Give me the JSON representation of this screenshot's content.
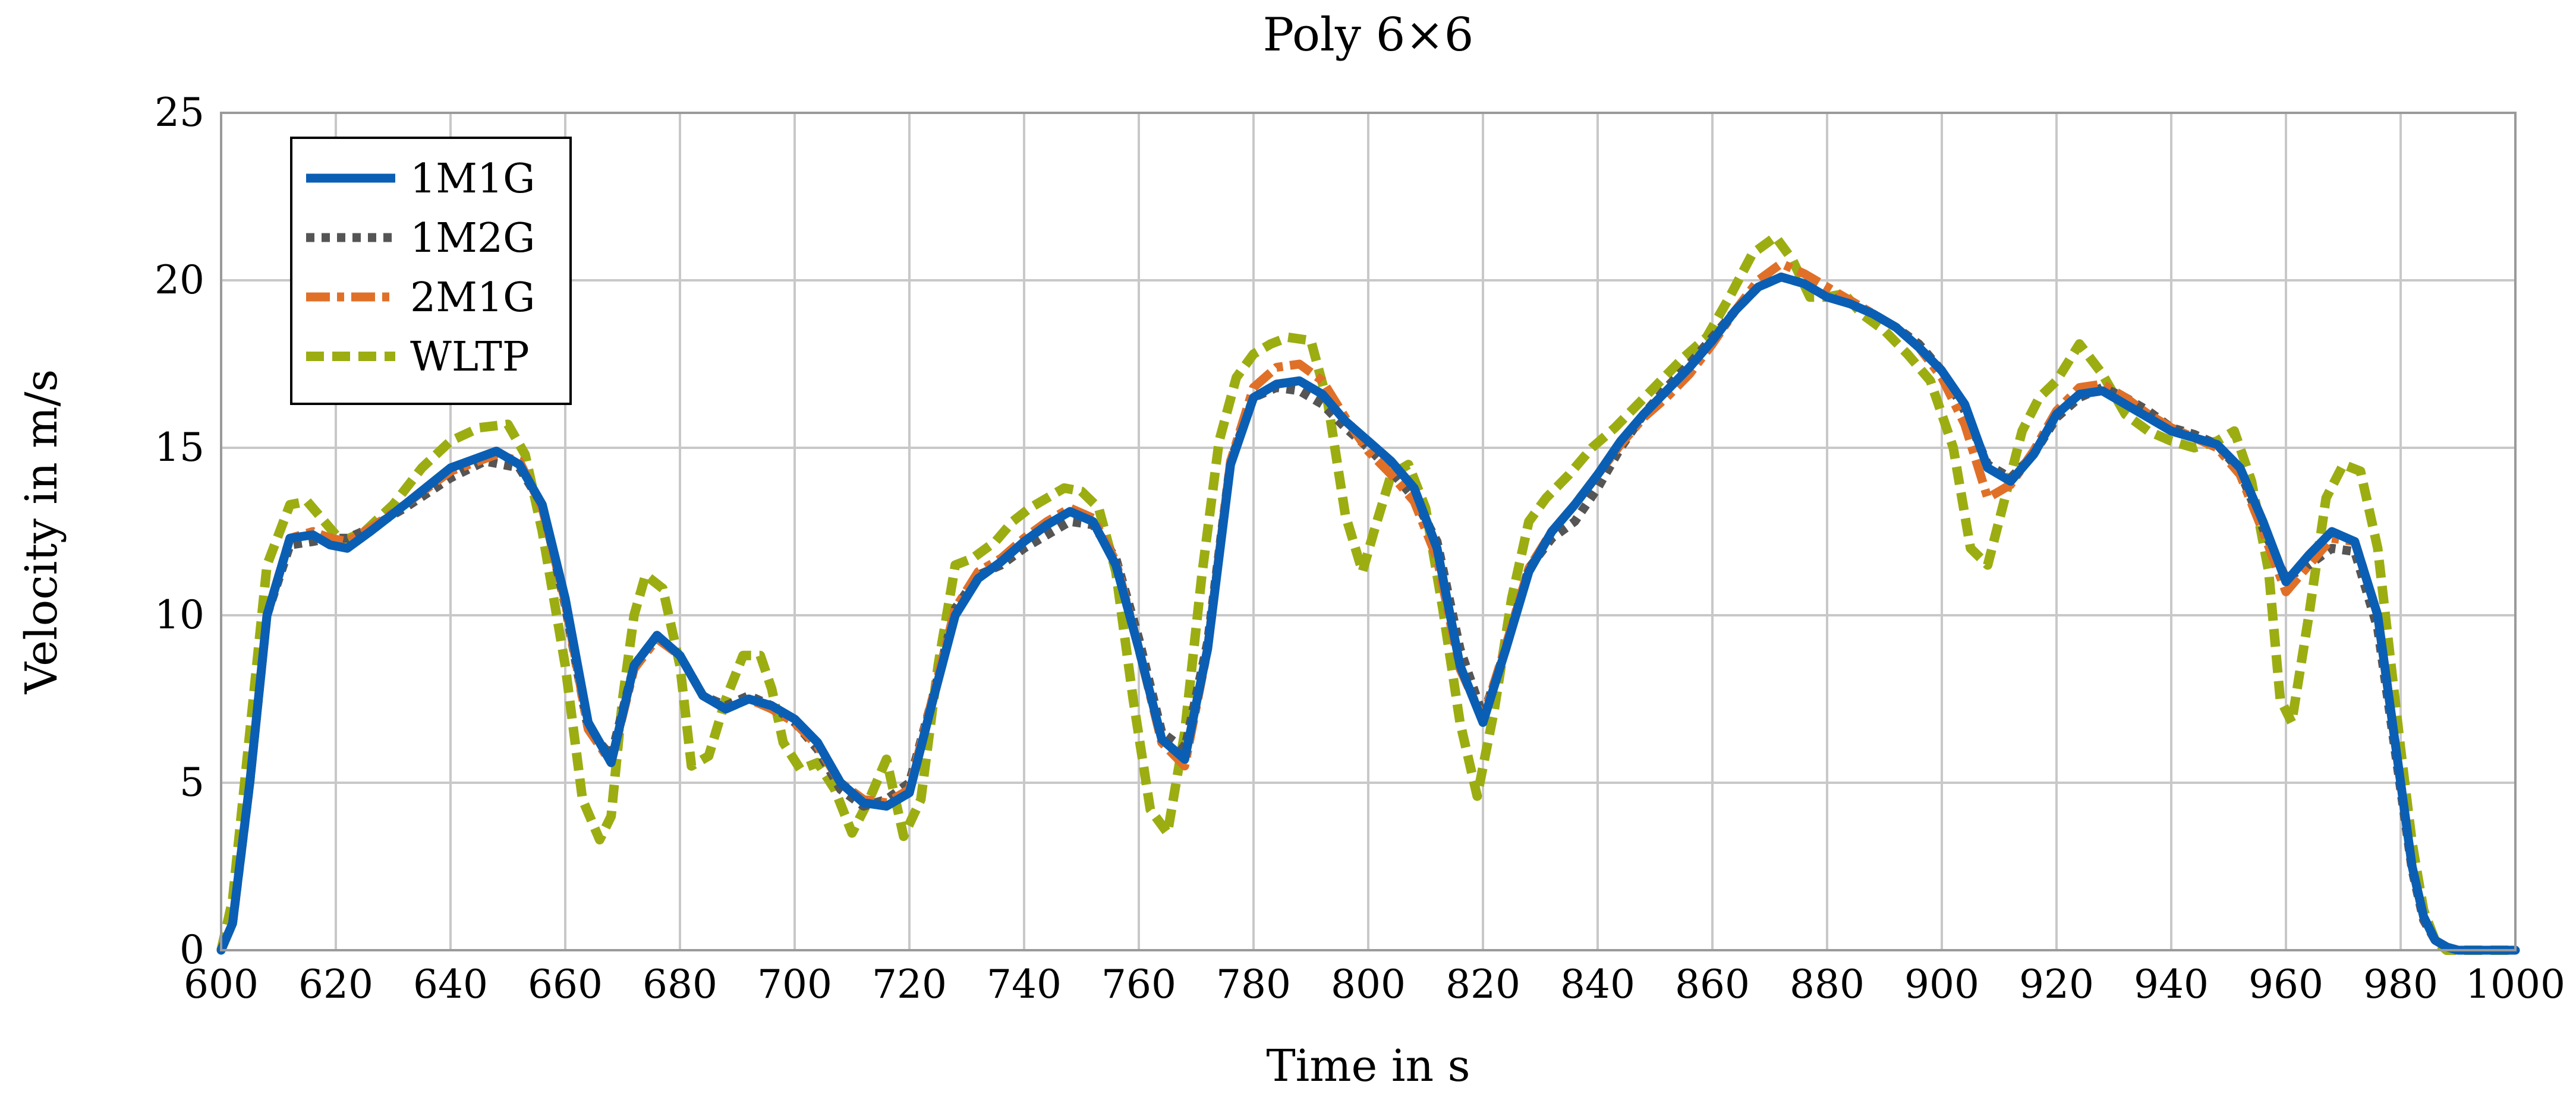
{
  "chart_data": {
    "type": "line",
    "title": "Poly 6×6",
    "xlabel": "Time in s",
    "ylabel": "Velocity in m/s",
    "xlim": [
      600,
      1000
    ],
    "ylim": [
      0,
      25
    ],
    "xticks": [
      600,
      620,
      640,
      660,
      680,
      700,
      720,
      740,
      760,
      780,
      800,
      820,
      840,
      860,
      880,
      900,
      920,
      940,
      960,
      980,
      1000
    ],
    "yticks": [
      0,
      5,
      10,
      15,
      20,
      25
    ],
    "grid": true,
    "legend_position": "top-left",
    "series": [
      {
        "name": "1M1G",
        "color": "#0a5fb4",
        "style": "solid",
        "x": [
          600,
          602,
          605,
          608,
          612,
          616,
          619,
          622,
          626,
          632,
          640,
          648,
          652,
          656,
          660,
          664,
          668,
          672,
          676,
          680,
          684,
          688,
          692,
          696,
          700,
          704,
          708,
          712,
          716,
          720,
          724,
          728,
          732,
          736,
          740,
          744,
          748,
          752,
          756,
          760,
          764,
          768,
          772,
          776,
          780,
          784,
          788,
          792,
          796,
          800,
          804,
          808,
          812,
          816,
          820,
          824,
          828,
          832,
          836,
          840,
          844,
          848,
          852,
          856,
          860,
          864,
          868,
          872,
          876,
          880,
          884,
          888,
          892,
          896,
          900,
          904,
          908,
          912,
          916,
          920,
          924,
          928,
          932,
          936,
          940,
          944,
          948,
          952,
          956,
          960,
          964,
          968,
          972,
          976,
          978,
          980,
          982,
          984,
          986,
          988,
          990,
          995,
          1000
        ],
        "y": [
          0,
          0.8,
          5,
          10,
          12.3,
          12.4,
          12.1,
          12,
          12.5,
          13.3,
          14.4,
          14.9,
          14.5,
          13.3,
          10.5,
          6.8,
          5.6,
          8.5,
          9.4,
          8.8,
          7.6,
          7.2,
          7.5,
          7.3,
          6.9,
          6.2,
          5,
          4.4,
          4.3,
          4.7,
          7.4,
          10,
          11.1,
          11.6,
          12.2,
          12.7,
          13.1,
          12.8,
          11.5,
          9,
          6.3,
          5.7,
          9,
          14.5,
          16.5,
          16.9,
          17,
          16.6,
          15.8,
          15.2,
          14.6,
          13.8,
          12,
          8.5,
          6.8,
          9,
          11.3,
          12.5,
          13.3,
          14.2,
          15.2,
          16,
          16.7,
          17.4,
          18.2,
          19.1,
          19.8,
          20.1,
          19.9,
          19.5,
          19.3,
          19,
          18.6,
          18,
          17.3,
          16.3,
          14.4,
          14,
          14.8,
          16,
          16.6,
          16.7,
          16.3,
          15.9,
          15.5,
          15.3,
          15.1,
          14.4,
          12.8,
          11,
          11.8,
          12.5,
          12.2,
          10,
          7.5,
          5,
          2.5,
          1,
          0.3,
          0.1,
          0,
          0,
          0
        ]
      },
      {
        "name": "1M2G",
        "color": "#555555",
        "style": "dotted",
        "x": [
          600,
          602,
          605,
          608,
          612,
          616,
          619,
          622,
          626,
          632,
          640,
          646,
          652,
          656,
          660,
          664,
          668,
          672,
          676,
          680,
          684,
          688,
          692,
          696,
          700,
          704,
          708,
          712,
          716,
          720,
          724,
          728,
          732,
          736,
          740,
          744,
          748,
          752,
          756,
          760,
          764,
          768,
          772,
          776,
          780,
          784,
          788,
          792,
          796,
          800,
          804,
          808,
          812,
          816,
          820,
          824,
          828,
          832,
          836,
          840,
          844,
          848,
          852,
          856,
          860,
          864,
          868,
          872,
          876,
          880,
          884,
          888,
          892,
          896,
          900,
          904,
          908,
          912,
          916,
          920,
          924,
          928,
          932,
          936,
          940,
          944,
          948,
          952,
          956,
          960,
          964,
          968,
          972,
          976,
          978,
          980,
          982,
          984,
          986,
          988,
          990,
          995,
          1000
        ],
        "y": [
          0,
          0.8,
          5,
          10,
          12.1,
          12.2,
          12.3,
          12.3,
          12.6,
          13.2,
          14.1,
          14.6,
          14.4,
          13.3,
          10.3,
          6.6,
          5.8,
          8.5,
          9.4,
          8.8,
          7.6,
          7.3,
          7.6,
          7.3,
          6.8,
          6,
          4.8,
          4.3,
          4.5,
          5,
          7.5,
          10.2,
          11.2,
          11.5,
          12,
          12.4,
          12.8,
          12.7,
          11.7,
          9.3,
          6.5,
          6,
          9.2,
          14.6,
          16.5,
          16.8,
          16.7,
          16.3,
          15.6,
          15,
          14.3,
          13.5,
          12.2,
          9,
          7,
          9,
          11.4,
          12.3,
          12.8,
          13.8,
          15,
          16,
          16.8,
          17.5,
          18.3,
          19.1,
          19.8,
          20.1,
          19.9,
          19.5,
          19.4,
          19,
          18.6,
          18.1,
          17.3,
          16.1,
          14.5,
          14.1,
          14.8,
          15.9,
          16.5,
          16.8,
          16.5,
          16.1,
          15.6,
          15.4,
          15.1,
          14.3,
          12.6,
          11.1,
          11.5,
          12,
          11.9,
          9.6,
          7.2,
          4.8,
          2.4,
          0.9,
          0.3,
          0.1,
          0,
          0,
          0
        ]
      },
      {
        "name": "2M1G",
        "color": "#e07028",
        "style": "dash-dot",
        "x": [
          600,
          602,
          605,
          608,
          612,
          616,
          619,
          622,
          626,
          632,
          640,
          648,
          652,
          656,
          660,
          664,
          668,
          672,
          676,
          680,
          684,
          688,
          692,
          696,
          700,
          704,
          708,
          712,
          716,
          720,
          724,
          728,
          732,
          736,
          740,
          744,
          748,
          752,
          756,
          760,
          764,
          768,
          772,
          776,
          780,
          784,
          788,
          792,
          796,
          800,
          804,
          808,
          812,
          816,
          820,
          824,
          828,
          832,
          836,
          840,
          844,
          848,
          852,
          856,
          860,
          864,
          868,
          872,
          876,
          880,
          884,
          888,
          892,
          896,
          900,
          904,
          908,
          912,
          916,
          920,
          924,
          928,
          932,
          936,
          940,
          944,
          948,
          952,
          956,
          960,
          964,
          968,
          972,
          976,
          978,
          980,
          982,
          984,
          986,
          988,
          990,
          995,
          1000
        ],
        "y": [
          0,
          0.8,
          5,
          10,
          12.3,
          12.5,
          12.3,
          12.2,
          12.6,
          13.3,
          14.3,
          14.8,
          14.6,
          13.2,
          10.4,
          6.6,
          5.6,
          8.4,
          9.3,
          8.8,
          7.6,
          7.2,
          7.5,
          7.2,
          6.8,
          6.1,
          5,
          4.5,
          4.4,
          4.8,
          7.5,
          10.2,
          11.3,
          11.7,
          12.3,
          12.8,
          13.2,
          12.9,
          11.6,
          9,
          6.2,
          5.5,
          9,
          14.6,
          16.8,
          17.4,
          17.5,
          17,
          15.9,
          14.9,
          14.2,
          13.4,
          11.7,
          8.4,
          6.9,
          9.1,
          11.4,
          12.5,
          13.3,
          14.2,
          15.1,
          15.9,
          16.5,
          17.2,
          18.1,
          19.1,
          20,
          20.5,
          20.2,
          19.8,
          19.4,
          19,
          18.6,
          18,
          17.1,
          15.7,
          13.5,
          13.9,
          14.9,
          16.1,
          16.8,
          16.9,
          16.5,
          16,
          15.6,
          15.3,
          15,
          14.2,
          12.5,
          10.7,
          11.5,
          12.3,
          12.2,
          10,
          7.5,
          5,
          2.5,
          1,
          0.3,
          0.1,
          0,
          0,
          0
        ]
      },
      {
        "name": "WLTP",
        "color": "#9cad12",
        "style": "dashed",
        "x": [
          600,
          602,
          605,
          608,
          612,
          615,
          618,
          621,
          625,
          630,
          635,
          640,
          645,
          650,
          653,
          656,
          660,
          663,
          666,
          668,
          670,
          672,
          674,
          677,
          680,
          682,
          685,
          688,
          691,
          694,
          696,
          698,
          701,
          704,
          707,
          710,
          713,
          716,
          719,
          722,
          725,
          728,
          731,
          735,
          738,
          741,
          744,
          747,
          750,
          753,
          756,
          759,
          762,
          765,
          768,
          771,
          774,
          777,
          780,
          783,
          786,
          790,
          793,
          796,
          799,
          801,
          804,
          807,
          810,
          813,
          816,
          819,
          822,
          825,
          828,
          831,
          835,
          839,
          843,
          847,
          851,
          855,
          859,
          863,
          867,
          871,
          874,
          877,
          880,
          883,
          886,
          890,
          894,
          898,
          902,
          905,
          908,
          911,
          914,
          917,
          920,
          924,
          928,
          932,
          936,
          940,
          944,
          948,
          951,
          954,
          957,
          959,
          961,
          964,
          967,
          970,
          973,
          976,
          978,
          980,
          982,
          984,
          986,
          988,
          990,
          995,
          1000
        ],
        "y": [
          0,
          1.5,
          6.5,
          11.5,
          13.3,
          13.4,
          12.8,
          12.2,
          12.5,
          13.3,
          14.4,
          15.2,
          15.6,
          15.7,
          14.8,
          12.5,
          8.5,
          4.5,
          3.3,
          4,
          7.5,
          10,
          11.2,
          10.8,
          8.5,
          5.5,
          5.8,
          7.5,
          8.8,
          8.8,
          7.8,
          6.2,
          5.4,
          5.6,
          4.8,
          3.5,
          4.5,
          5.7,
          3.4,
          4.5,
          8.5,
          11.5,
          11.7,
          12.2,
          12.8,
          13.2,
          13.5,
          13.8,
          13.7,
          13.2,
          11.3,
          7.5,
          4.2,
          3.5,
          6.5,
          11.2,
          15.2,
          17.1,
          17.8,
          18.1,
          18.3,
          18.2,
          16.3,
          13,
          11.3,
          12.5,
          14.2,
          14.5,
          13.2,
          10.2,
          6.8,
          4.6,
          7.2,
          10.5,
          12.8,
          13.5,
          14.2,
          15,
          15.6,
          16.3,
          17,
          17.7,
          18.3,
          19.5,
          20.8,
          21.3,
          20.6,
          19.5,
          19.5,
          19.6,
          19,
          18.5,
          17.8,
          17,
          15,
          12,
          11.5,
          13.5,
          15.5,
          16.5,
          17,
          18.1,
          17.2,
          16,
          15.5,
          15.2,
          15,
          15.2,
          15.5,
          14,
          11.3,
          7.5,
          6.8,
          10,
          13.5,
          14.5,
          14.3,
          12,
          9,
          6,
          3.2,
          1.2,
          0.3,
          0,
          0,
          0,
          0
        ]
      }
    ]
  }
}
